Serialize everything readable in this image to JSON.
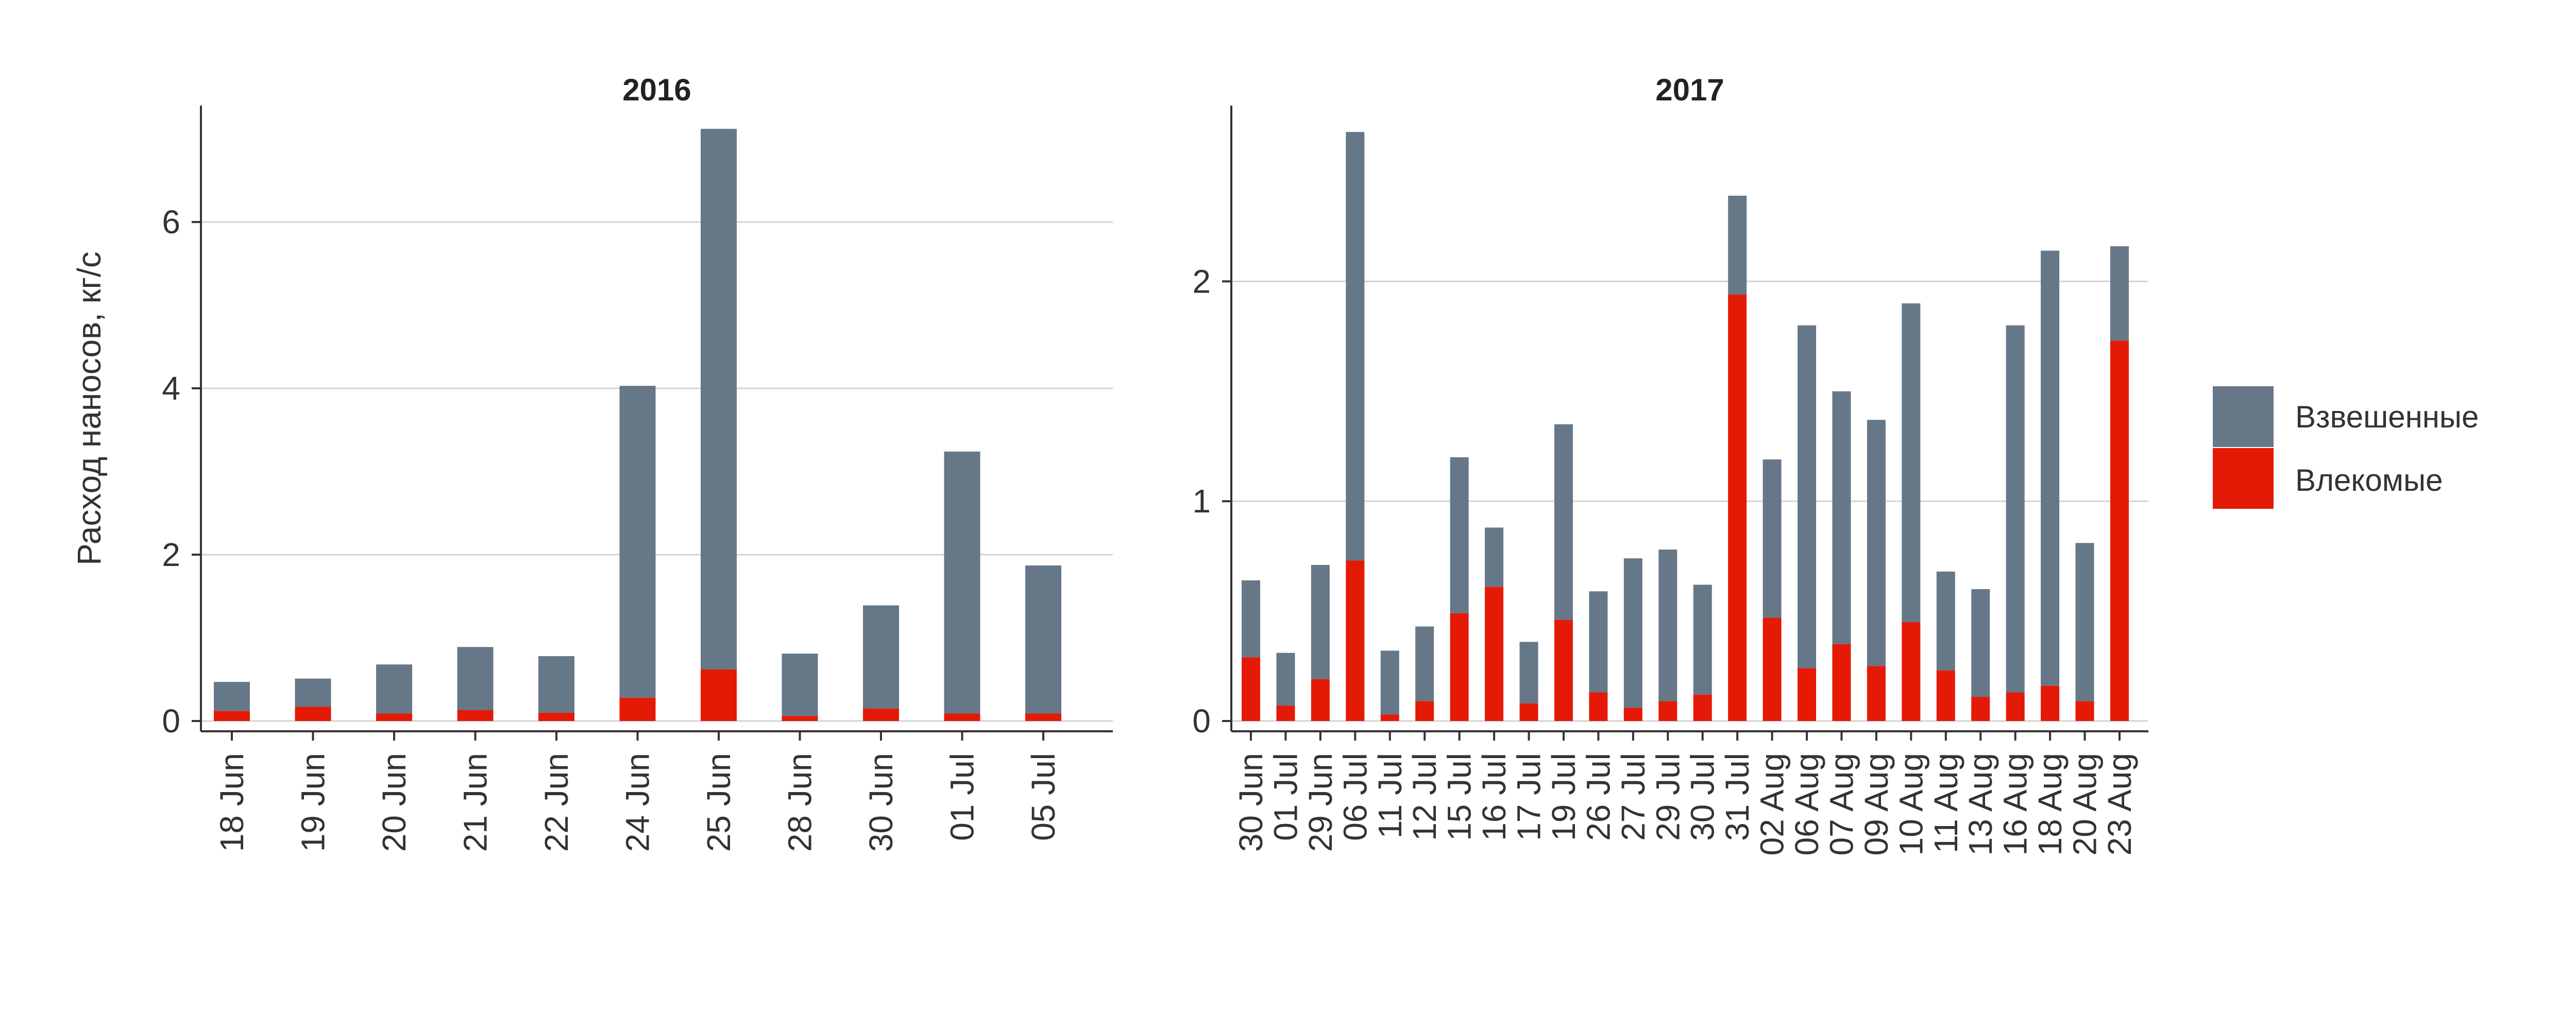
{
  "y_axis_label": "Расход наносов, кг/с",
  "colors": {
    "suspended": "#667788",
    "bedload": "#e41a06"
  },
  "legend": [
    {
      "label": "Взвешенные",
      "color": "#667788"
    },
    {
      "label": "Влекомые",
      "color": "#e41a06"
    }
  ],
  "chart_data": [
    {
      "type": "bar",
      "stacked": true,
      "title": "2016",
      "ylabel": "Расход наносов, кг/с",
      "ylim": [
        0,
        7.4
      ],
      "yticks": [
        0,
        2,
        4,
        6
      ],
      "grid": true,
      "categories": [
        "18 Jun",
        "19 Jun",
        "20 Jun",
        "21 Jun",
        "22 Jun",
        "24 Jun",
        "25 Jun",
        "28 Jun",
        "30 Jun",
        "01 Jul",
        "05 Jul"
      ],
      "series": [
        {
          "name": "Влекомые",
          "values": [
            0.12,
            0.17,
            0.09,
            0.13,
            0.1,
            0.28,
            0.62,
            0.06,
            0.15,
            0.09,
            0.09
          ]
        },
        {
          "name": "Взвешенные",
          "values": [
            0.35,
            0.34,
            0.59,
            0.76,
            0.68,
            3.75,
            6.5,
            0.75,
            1.24,
            3.15,
            1.78
          ]
        }
      ]
    },
    {
      "type": "bar",
      "stacked": true,
      "title": "2017",
      "ylim": [
        0,
        2.8
      ],
      "yticks": [
        0,
        1,
        2
      ],
      "grid": true,
      "categories": [
        "30 Jun",
        "01 Jul",
        "29 Jun",
        "06 Jul",
        "11 Jul",
        "12 Jul",
        "15 Jul",
        "16 Jul",
        "17 Jul",
        "19 Jul",
        "26 Jul",
        "27 Jul",
        "29 Jul",
        "30 Jul",
        "31 Jul",
        "02 Aug",
        "06 Aug",
        "07 Aug",
        "09 Aug",
        "10 Aug",
        "11 Aug",
        "13 Aug",
        "16 Aug",
        "18 Aug",
        "20 Aug",
        "23 Aug"
      ],
      "series": [
        {
          "name": "Влекомые",
          "values": [
            0.29,
            0.07,
            0.19,
            0.73,
            0.03,
            0.09,
            0.49,
            0.61,
            0.08,
            0.46,
            0.13,
            0.06,
            0.09,
            0.12,
            1.94,
            0.47,
            0.24,
            0.35,
            0.25,
            0.45,
            0.23,
            0.11,
            0.13,
            0.16,
            0.09,
            1.73
          ]
        },
        {
          "name": "Взвешенные",
          "values": [
            0.35,
            0.24,
            0.52,
            1.95,
            0.29,
            0.34,
            0.71,
            0.27,
            0.28,
            0.89,
            0.46,
            0.68,
            0.69,
            0.5,
            0.45,
            0.72,
            1.56,
            1.15,
            1.12,
            1.45,
            0.45,
            0.49,
            1.67,
            1.98,
            0.72,
            0.43
          ]
        }
      ]
    }
  ]
}
